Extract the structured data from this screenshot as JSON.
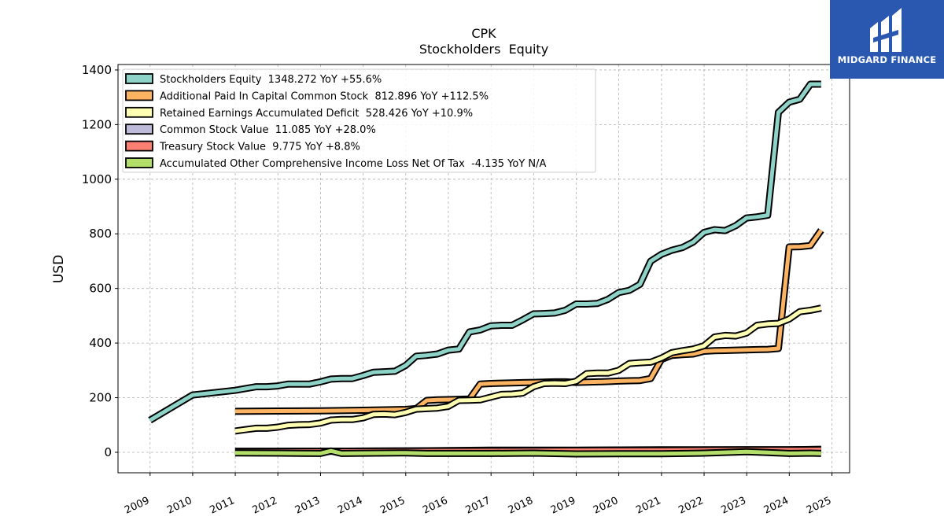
{
  "brand": {
    "name": "MIDGARD FINANCE",
    "color": "#2a58b1"
  },
  "chart_data": {
    "type": "line",
    "title": "CPK",
    "subtitle": "Stockholders  Equity",
    "ylabel": "USD",
    "xlabel": "",
    "xlim": [
      "2008-04-01",
      "2025-06-01"
    ],
    "ylim": [
      -75,
      1420
    ],
    "yticks": [
      0,
      200,
      400,
      600,
      800,
      1000,
      1200,
      1400
    ],
    "xticks": [
      "2009",
      "2010",
      "2011",
      "2012",
      "2013",
      "2014",
      "2015",
      "2016",
      "2017",
      "2018",
      "2019",
      "2020",
      "2021",
      "2022",
      "2023",
      "2024",
      "2025"
    ],
    "grid": true,
    "legend_position": "top-left",
    "series": [
      {
        "name": "Stockholders Equity  1348.272 YoY +55.6%",
        "color": "#8dd3c7",
        "x": [
          "2008-12-31",
          "2009-12-31",
          "2010-12-31",
          "2011-06-30",
          "2011-09-30",
          "2011-12-31",
          "2012-03-31",
          "2012-06-30",
          "2012-09-30",
          "2012-12-31",
          "2013-03-31",
          "2013-06-30",
          "2013-09-30",
          "2013-12-31",
          "2014-03-31",
          "2014-06-30",
          "2014-09-30",
          "2014-12-31",
          "2015-03-31",
          "2015-06-30",
          "2015-09-30",
          "2015-12-31",
          "2016-03-31",
          "2016-06-30",
          "2016-09-30",
          "2016-12-31",
          "2017-03-31",
          "2017-06-30",
          "2017-09-30",
          "2017-12-31",
          "2018-03-31",
          "2018-06-30",
          "2018-09-30",
          "2018-12-31",
          "2019-03-31",
          "2019-06-30",
          "2019-09-30",
          "2019-12-31",
          "2020-03-31",
          "2020-06-30",
          "2020-09-30",
          "2020-12-31",
          "2021-03-31",
          "2021-06-30",
          "2021-09-30",
          "2021-12-31",
          "2022-03-31",
          "2022-06-30",
          "2022-09-30",
          "2022-12-31",
          "2023-03-31",
          "2023-06-30",
          "2023-09-30",
          "2023-12-31",
          "2024-03-31",
          "2024-06-30",
          "2024-09-30"
        ],
        "values": [
          117,
          210,
          227,
          240,
          240,
          243,
          250,
          250,
          250,
          258,
          268,
          270,
          270,
          281,
          293,
          295,
          297,
          318,
          352,
          355,
          360,
          374,
          378,
          441,
          448,
          463,
          465,
          465,
          485,
          507,
          508,
          510,
          520,
          543,
          543,
          545,
          560,
          585,
          593,
          615,
          700,
          725,
          740,
          750,
          770,
          805,
          815,
          812,
          830,
          858,
          862,
          868,
          1245,
          1282,
          1293,
          1348,
          1348
        ]
      },
      {
        "name": "Additional Paid In Capital Common Stock  812.896 YoY +112.5%",
        "color": "#fdb462",
        "x": [
          "2010-12-31",
          "2011-12-31",
          "2012-12-31",
          "2013-12-31",
          "2014-12-31",
          "2015-03-31",
          "2015-06-30",
          "2015-09-30",
          "2015-12-31",
          "2016-03-31",
          "2016-06-30",
          "2016-09-30",
          "2016-12-31",
          "2017-03-31",
          "2017-06-30",
          "2017-09-30",
          "2017-12-31",
          "2018-03-31",
          "2018-06-30",
          "2018-09-30",
          "2018-12-31",
          "2019-03-31",
          "2019-06-30",
          "2019-09-30",
          "2019-12-31",
          "2020-03-31",
          "2020-06-30",
          "2020-09-30",
          "2020-12-31",
          "2021-03-31",
          "2021-06-30",
          "2021-09-30",
          "2021-12-31",
          "2022-03-31",
          "2022-06-30",
          "2022-09-30",
          "2022-12-31",
          "2023-03-31",
          "2023-06-30",
          "2023-09-30",
          "2023-12-31",
          "2024-03-31",
          "2024-06-30",
          "2024-09-30"
        ],
        "values": [
          150,
          151,
          152,
          154,
          157,
          160,
          190,
          192,
          193,
          194,
          195,
          250,
          252,
          253,
          254,
          255,
          256,
          257,
          258,
          258,
          256,
          257,
          258,
          259,
          261,
          262,
          263,
          270,
          340,
          355,
          358,
          360,
          370,
          372,
          373,
          374,
          375,
          376,
          377,
          380,
          752,
          753,
          757,
          813
        ]
      },
      {
        "name": "Retained Earnings Accumulated Deficit  528.426 YoY +10.9%",
        "color": "#ffffb3",
        "x": [
          "2010-12-31",
          "2011-03-31",
          "2011-06-30",
          "2011-09-30",
          "2011-12-31",
          "2012-03-31",
          "2012-06-30",
          "2012-09-30",
          "2012-12-31",
          "2013-03-31",
          "2013-06-30",
          "2013-09-30",
          "2013-12-31",
          "2014-03-31",
          "2014-06-30",
          "2014-09-30",
          "2014-12-31",
          "2015-03-31",
          "2015-06-30",
          "2015-09-30",
          "2015-12-31",
          "2016-03-31",
          "2016-06-30",
          "2016-09-30",
          "2016-12-31",
          "2017-03-31",
          "2017-06-30",
          "2017-09-30",
          "2017-12-31",
          "2018-03-31",
          "2018-06-30",
          "2018-09-30",
          "2018-12-31",
          "2019-03-31",
          "2019-06-30",
          "2019-09-30",
          "2019-12-31",
          "2020-03-31",
          "2020-06-30",
          "2020-09-30",
          "2020-12-31",
          "2021-03-31",
          "2021-06-30",
          "2021-09-30",
          "2021-12-31",
          "2022-03-31",
          "2022-06-30",
          "2022-09-30",
          "2022-12-31",
          "2023-03-31",
          "2023-06-30",
          "2023-09-30",
          "2023-12-31",
          "2024-03-31",
          "2024-06-30",
          "2024-09-30"
        ],
        "values": [
          78,
          83,
          88,
          88,
          92,
          99,
          101,
          102,
          107,
          118,
          120,
          120,
          126,
          139,
          140,
          138,
          146,
          158,
          160,
          162,
          168,
          190,
          191,
          192,
          202,
          212,
          213,
          217,
          240,
          252,
          253,
          252,
          260,
          288,
          290,
          290,
          300,
          325,
          328,
          330,
          345,
          365,
          372,
          378,
          390,
          422,
          428,
          426,
          437,
          465,
          470,
          472,
          488,
          515,
          520,
          528
        ]
      },
      {
        "name": "Common Stock Value  11.085 YoY +28.0%",
        "color": "#bebada",
        "x": [
          "2010-12-31",
          "2012-12-31",
          "2014-12-31",
          "2016-12-31",
          "2018-12-31",
          "2020-12-31",
          "2022-12-31",
          "2023-12-31",
          "2024-09-30"
        ],
        "values": [
          4,
          4,
          5,
          8,
          8,
          9,
          9,
          9,
          11
        ]
      },
      {
        "name": "Treasury Stock Value  9.775 YoY +8.8%",
        "color": "#fb8072",
        "x": [
          "2010-12-31",
          "2012-12-31",
          "2014-12-31",
          "2016-12-31",
          "2018-12-31",
          "2020-12-31",
          "2022-12-31",
          "2023-12-31",
          "2024-09-30"
        ],
        "values": [
          3,
          4,
          5,
          6,
          7,
          8,
          9,
          9,
          10
        ]
      },
      {
        "name": "Accumulated Other Comprehensive Income Loss Net Of Tax  -4.135 YoY N/A",
        "color": "#b3de69",
        "x": [
          "2010-12-31",
          "2011-12-31",
          "2012-12-31",
          "2013-03-31",
          "2013-06-30",
          "2014-12-31",
          "2015-06-30",
          "2016-12-31",
          "2017-12-31",
          "2018-12-31",
          "2019-12-31",
          "2020-12-31",
          "2021-12-31",
          "2022-12-31",
          "2023-06-30",
          "2023-12-31",
          "2024-06-30",
          "2024-09-30"
        ],
        "values": [
          -2,
          -3,
          -4,
          5,
          -4,
          -2,
          -4,
          -4,
          -3,
          -6,
          -5,
          -5,
          -3,
          2,
          -1,
          -4,
          -3,
          -4
        ]
      }
    ]
  }
}
